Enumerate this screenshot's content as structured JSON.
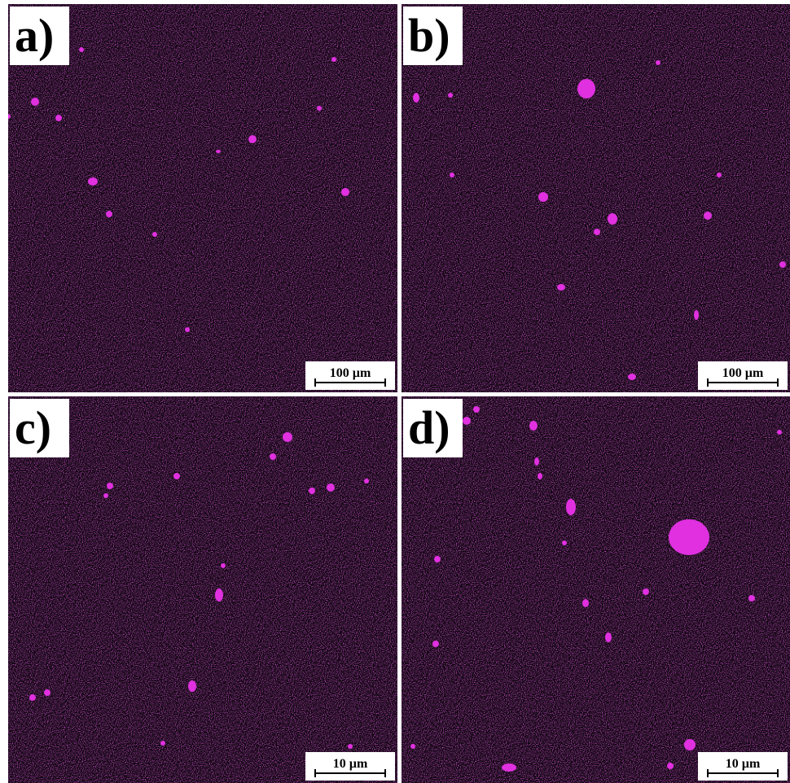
{
  "panels": [
    {
      "label": "a)",
      "scale_bar": "100 µm"
    },
    {
      "label": "b)",
      "scale_bar": "100 µm"
    },
    {
      "label": "c)",
      "scale_bar": "10 µm"
    },
    {
      "label": "d)",
      "scale_bar": "10 µm"
    }
  ]
}
